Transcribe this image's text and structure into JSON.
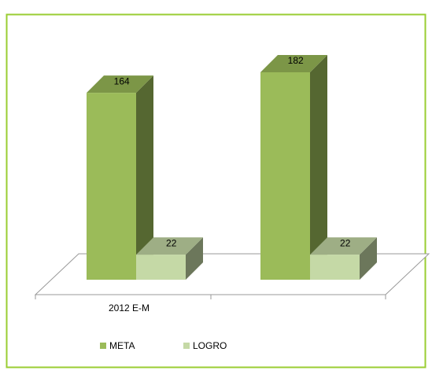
{
  "chart_data": {
    "type": "bar3d",
    "categories": [
      "2012 E-M",
      null
    ],
    "series": [
      {
        "name": "META",
        "color": "#9bbb59",
        "values": [
          164,
          182
        ]
      },
      {
        "name": "LOGRO",
        "color": "#c5d9a6",
        "values": [
          22,
          22
        ]
      }
    ],
    "legend": "bottom"
  }
}
